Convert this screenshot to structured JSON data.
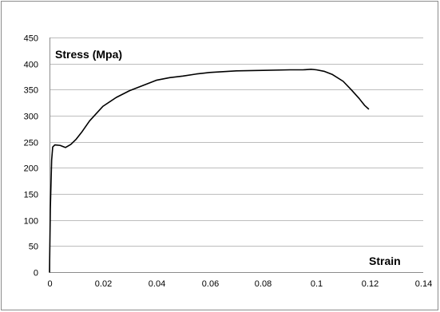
{
  "chart_data": {
    "type": "line",
    "title": "",
    "xlabel": "Strain",
    "ylabel": "Stress (Mpa)",
    "xlim": [
      0,
      0.14
    ],
    "ylim": [
      0,
      450
    ],
    "x_ticks": [
      "0",
      "0.02",
      "0.04",
      "0.06",
      "0.08",
      "0.1",
      "0.12",
      "0.14"
    ],
    "y_ticks": [
      "0",
      "50",
      "100",
      "150",
      "200",
      "250",
      "300",
      "350",
      "400",
      "450"
    ],
    "grid": true,
    "legend": "none",
    "series": [
      {
        "color": "#000000",
        "x": [
          0,
          0.0003,
          0.0008,
          0.0012,
          0.002,
          0.004,
          0.006,
          0.008,
          0.01,
          0.012,
          0.015,
          0.02,
          0.025,
          0.03,
          0.035,
          0.04,
          0.045,
          0.05,
          0.055,
          0.06,
          0.07,
          0.08,
          0.09,
          0.095,
          0.098,
          0.1,
          0.103,
          0.106,
          0.11,
          0.113,
          0.116,
          0.118,
          0.1195
        ],
        "y": [
          0,
          120,
          215,
          240,
          244,
          243,
          239,
          245,
          255,
          268,
          290,
          318,
          335,
          348,
          358,
          368,
          373,
          376,
          380,
          383,
          386,
          387,
          388,
          388,
          389,
          388,
          385,
          379,
          366,
          350,
          333,
          320,
          313
        ]
      }
    ]
  }
}
